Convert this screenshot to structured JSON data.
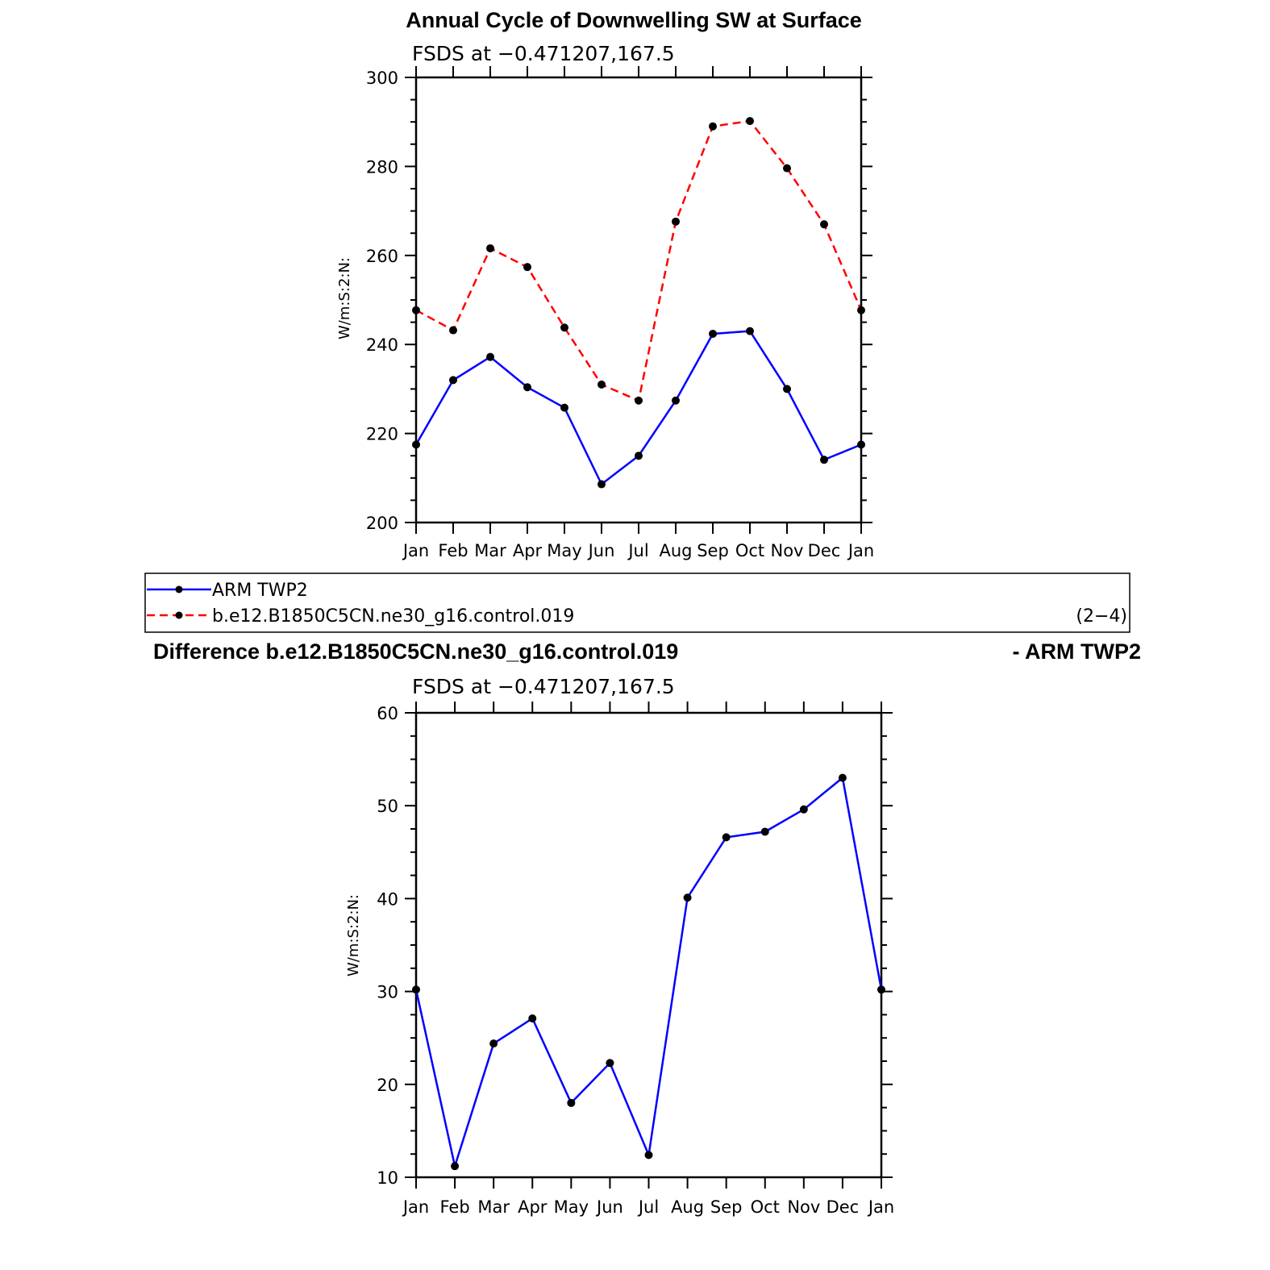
{
  "figure": {
    "legend": {
      "entries": [
        {
          "label": "ARM TWP2",
          "color": "#0000ff",
          "dash": "solid"
        },
        {
          "label": "b.e12.B1850C5CN.ne30_g16.control.019",
          "color": "#ff0000",
          "dash": "dashed"
        }
      ],
      "panel_tag": "(2−4)"
    }
  },
  "chart_data": [
    {
      "type": "line",
      "title": "Annual Cycle of Downwelling SW at Surface",
      "subtitle": "FSDS at −0.471207,167.5",
      "xlabel": "",
      "ylabel": "W/m:S:2:N:",
      "categories": [
        "Jan",
        "Feb",
        "Mar",
        "Apr",
        "May",
        "Jun",
        "Jul",
        "Aug",
        "Sep",
        "Oct",
        "Nov",
        "Dec",
        "Jan"
      ],
      "ylim": [
        200,
        300
      ],
      "yticks": [
        200,
        220,
        240,
        260,
        280,
        300
      ],
      "grid": false,
      "series": [
        {
          "name": "ARM TWP2",
          "color": "#0000ff",
          "dash": "solid",
          "values": [
            217.5,
            232,
            237.2,
            230.4,
            225.8,
            208.6,
            215,
            227.4,
            242.4,
            243,
            230,
            214.1,
            217.5
          ]
        },
        {
          "name": "b.e12.B1850C5CN.ne30_g16.control.019",
          "color": "#ff0000",
          "dash": "dashed",
          "values": [
            247.7,
            243.2,
            261.6,
            257.4,
            243.8,
            231,
            227.4,
            267.6,
            289,
            290.2,
            279.6,
            267,
            247.7
          ]
        }
      ]
    },
    {
      "type": "line",
      "title": "Difference b.e12.B1850C5CN.ne30_g16.control.019",
      "title_right": "- ARM TWP2",
      "subtitle": "FSDS at −0.471207,167.5",
      "xlabel": "",
      "ylabel": "W/m:S:2:N:",
      "categories": [
        "Jan",
        "Feb",
        "Mar",
        "Apr",
        "May",
        "Jun",
        "Jul",
        "Aug",
        "Sep",
        "Oct",
        "Nov",
        "Dec",
        "Jan"
      ],
      "ylim": [
        10,
        60
      ],
      "yticks": [
        10,
        20,
        30,
        40,
        50,
        60
      ],
      "grid": false,
      "series": [
        {
          "color": "#0000ff",
          "dash": "solid",
          "values": [
            30.2,
            11.2,
            24.4,
            27.1,
            18,
            22.3,
            12.4,
            40.1,
            46.6,
            47.2,
            49.6,
            53,
            30.2
          ]
        }
      ]
    }
  ]
}
